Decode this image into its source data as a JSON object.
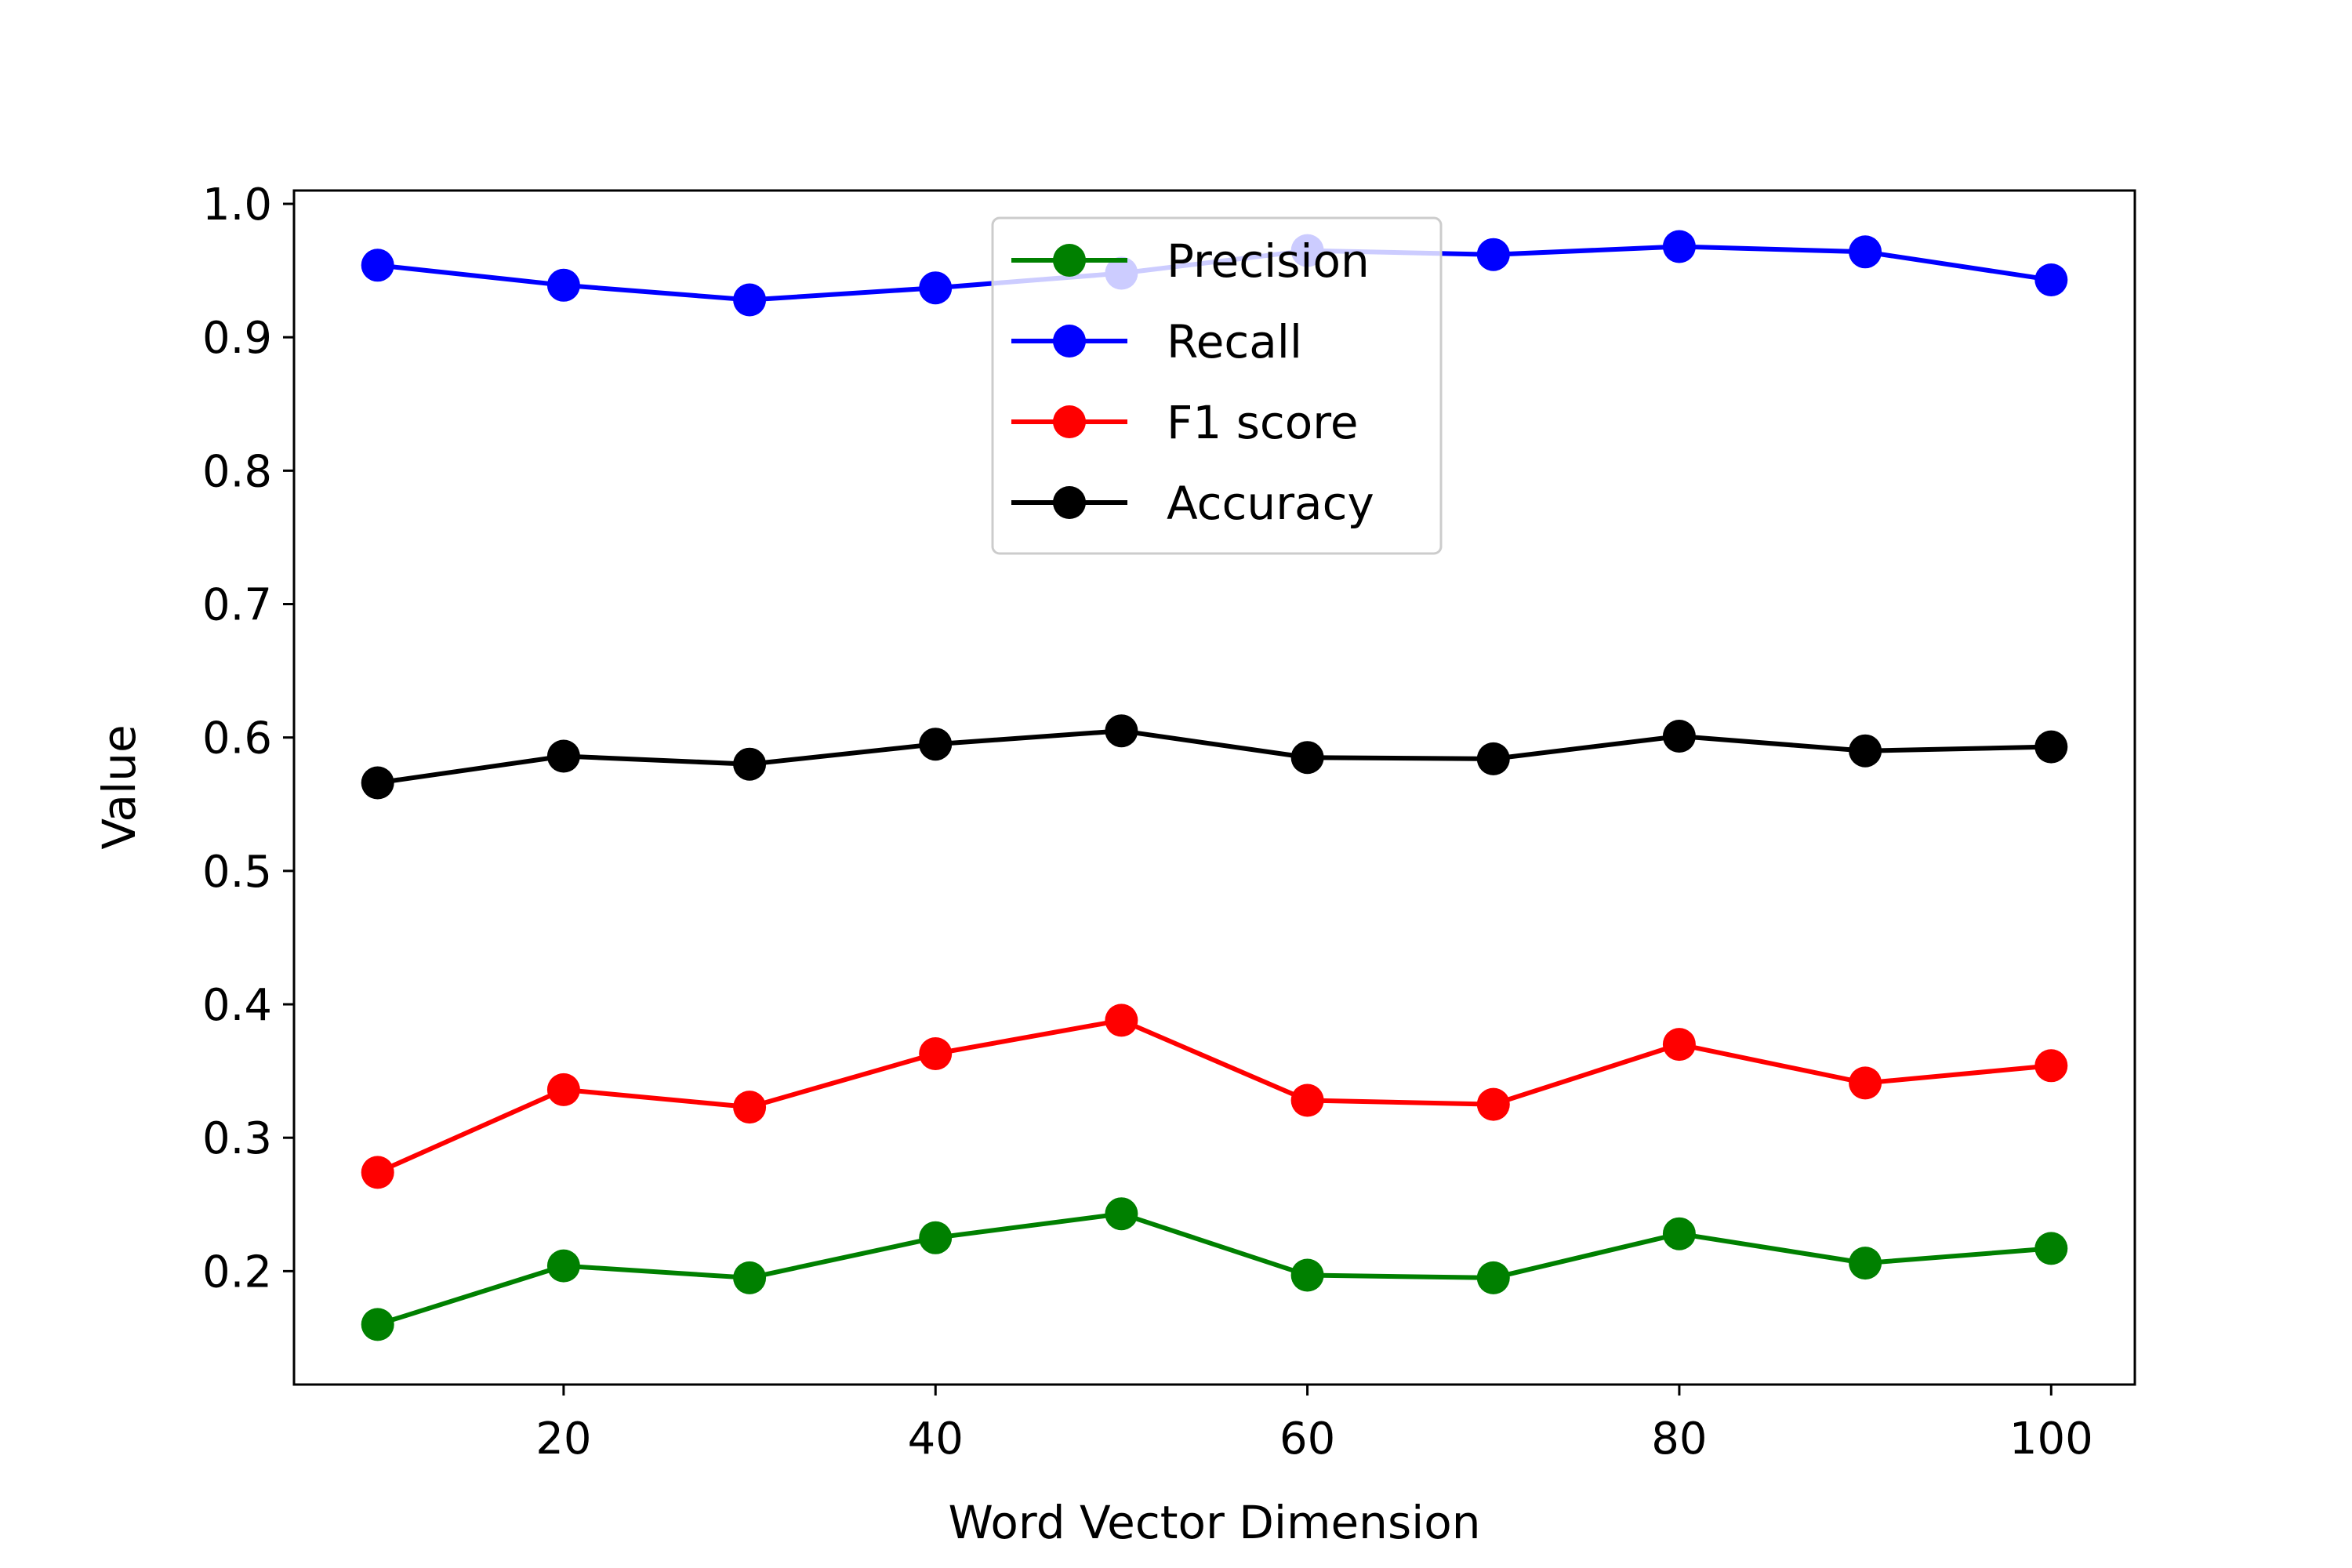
{
  "chart_data": {
    "type": "line",
    "title": "",
    "xlabel": "Word Vector Dimension",
    "ylabel": "Value",
    "x": [
      10,
      20,
      30,
      40,
      50,
      60,
      70,
      80,
      90,
      100
    ],
    "xticks": [
      "20",
      "40",
      "60",
      "80",
      "100"
    ],
    "yticks": [
      "0.2",
      "0.3",
      "0.4",
      "0.5",
      "0.6",
      "0.7",
      "0.8",
      "0.9",
      "1.0"
    ],
    "xlim": [
      5.5,
      104.5
    ],
    "ylim": [
      0.115,
      1.01
    ],
    "grid": false,
    "legend_position": "top-center",
    "series": [
      {
        "name": "Precision",
        "color": "#008000",
        "values": [
          0.16,
          0.204,
          0.195,
          0.225,
          0.243,
          0.197,
          0.195,
          0.228,
          0.206,
          0.217
        ]
      },
      {
        "name": "Recall",
        "color": "#0000ff",
        "values": [
          0.954,
          0.939,
          0.928,
          0.937,
          0.948,
          0.965,
          0.962,
          0.968,
          0.964,
          0.943
        ]
      },
      {
        "name": "F1 score",
        "color": "#ff0000",
        "values": [
          0.274,
          0.336,
          0.323,
          0.363,
          0.388,
          0.328,
          0.325,
          0.37,
          0.341,
          0.354
        ]
      },
      {
        "name": "Accuracy",
        "color": "#000000",
        "values": [
          0.566,
          0.586,
          0.58,
          0.595,
          0.605,
          0.585,
          0.584,
          0.601,
          0.59,
          0.593
        ]
      }
    ]
  }
}
